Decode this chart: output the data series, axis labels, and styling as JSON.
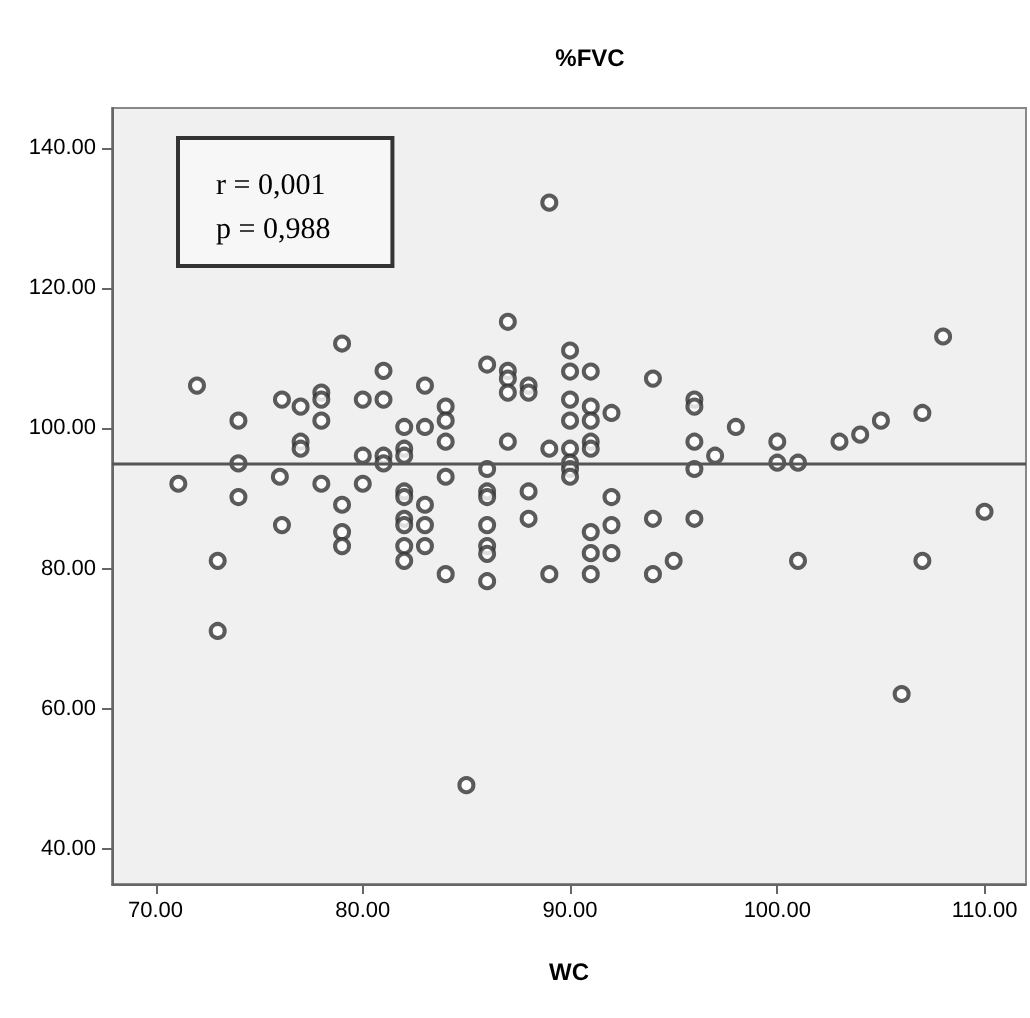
{
  "chart_data": {
    "type": "scatter",
    "title": "%FVC",
    "xlabel": "WC",
    "annotations": [
      "r = 0,001",
      "p = 0,988"
    ],
    "x": [
      72.0,
      79.0,
      89.0,
      87.0,
      81.0,
      74.0,
      76.1,
      77.0,
      78.0,
      78.0,
      78.0,
      80.0,
      81.0,
      83.0,
      84.0,
      84.0,
      84.0,
      82.0,
      83.0,
      86.0,
      87.0,
      87.0,
      87.0,
      88.0,
      88.0,
      87.0,
      89.0,
      77.0,
      77.0,
      74.0,
      80.0,
      81.0,
      81.0,
      82.0,
      82.0,
      71.1,
      74.0,
      76.0,
      78.0,
      80.0,
      82.0,
      82.0,
      84.0,
      86.0,
      86.0,
      86.0,
      88.0,
      76.1,
      73.0,
      73.0,
      79.0,
      79.0,
      79.0,
      82.0,
      82.0,
      82.0,
      82.0,
      83.0,
      83.0,
      83.0,
      84.0,
      85.0,
      86.0,
      86.0,
      86.0,
      86.0,
      88.0,
      89.0,
      90.0,
      90.0,
      91.0,
      94.0,
      90.0,
      90.0,
      91.0,
      91.0,
      92.0,
      96.0,
      96.0,
      90.0,
      90.0,
      90.0,
      90.0,
      91.0,
      91.0,
      92.0,
      96.0,
      96.0,
      97.0,
      98.0,
      100.0,
      100.0,
      101.0,
      103.0,
      104.0,
      105.0,
      107.0,
      108.0,
      91.0,
      91.0,
      91.0,
      92.0,
      92.0,
      94.0,
      94.0,
      95.0,
      96.0,
      101.0,
      107.0,
      106.0,
      110.0
    ],
    "values": [
      106.1,
      112.1,
      132.2,
      115.2,
      108.2,
      101.1,
      104.1,
      103.1,
      105.1,
      104.1,
      101.1,
      104.1,
      104.1,
      106.1,
      103.1,
      101.1,
      98.1,
      100.2,
      100.2,
      109.1,
      108.2,
      107.1,
      105.1,
      106.1,
      105.1,
      98.1,
      97.1,
      98.1,
      97.1,
      95.0,
      96.1,
      96.1,
      95.0,
      97.1,
      96.1,
      92.1,
      90.2,
      93.1,
      92.1,
      92.1,
      91.0,
      90.2,
      93.1,
      94.2,
      91.0,
      90.2,
      91.0,
      86.2,
      81.1,
      71.1,
      89.1,
      85.2,
      83.2,
      87.1,
      86.2,
      83.2,
      81.1,
      89.1,
      86.2,
      83.2,
      79.2,
      49.1,
      86.2,
      83.2,
      82.1,
      78.2,
      87.1,
      79.2,
      111.1,
      108.1,
      108.1,
      107.1,
      104.1,
      101.1,
      103.1,
      101.1,
      102.2,
      104.1,
      103.1,
      97.1,
      95.1,
      94.2,
      93.1,
      98.1,
      97.1,
      90.2,
      98.1,
      94.2,
      96.1,
      100.2,
      98.1,
      95.1,
      95.1,
      98.1,
      99.1,
      101.1,
      102.2,
      113.1,
      85.2,
      82.2,
      79.2,
      86.2,
      82.2,
      87.1,
      79.2,
      81.1,
      87.1,
      81.1,
      81.1,
      62.1,
      88.1
    ],
    "color": "#333333",
    "marker": "circle",
    "xlim": [
      67.9,
      112
    ],
    "ylim": [
      35,
      145.7
    ],
    "xticks": [
      {
        "value": 70,
        "label": "70.00"
      },
      {
        "value": 80,
        "label": "80.00"
      },
      {
        "value": 90,
        "label": "90.00"
      },
      {
        "value": 100,
        "label": "100.00"
      },
      {
        "value": 110,
        "label": "110.00"
      }
    ],
    "yticks": [
      {
        "value": 40,
        "label": "40.00"
      },
      {
        "value": 60,
        "label": "60.00"
      },
      {
        "value": 80,
        "label": "80.00"
      },
      {
        "value": 100,
        "label": "100.00"
      },
      {
        "value": 120,
        "label": "120.00"
      },
      {
        "value": 140,
        "label": "140.00"
      }
    ],
    "ref_lines": [
      {
        "axis": "y",
        "value": 95,
        "color": "#555555"
      }
    ],
    "grid": false
  }
}
